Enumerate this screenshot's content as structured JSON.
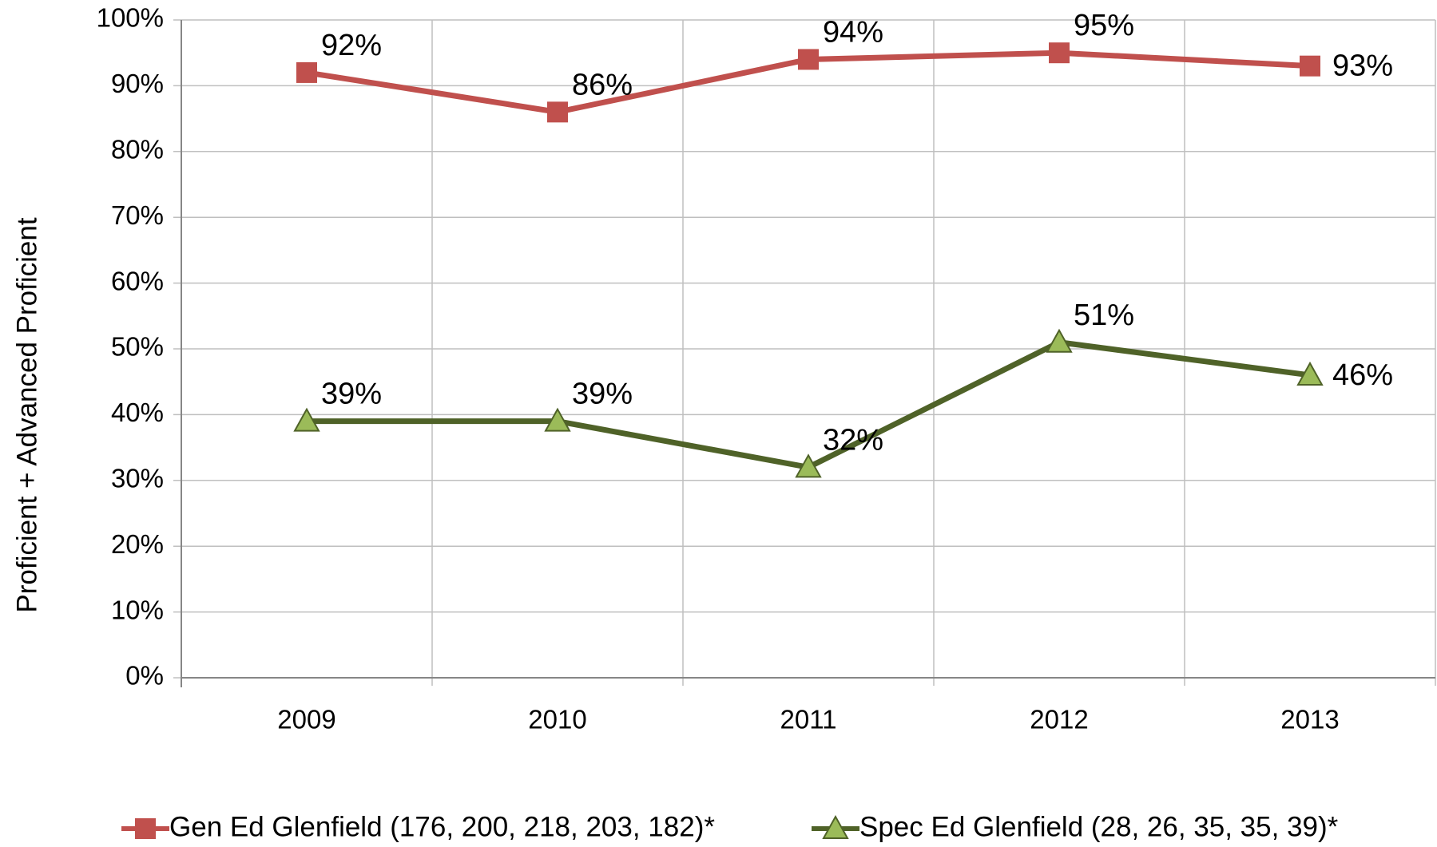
{
  "chart_data": {
    "type": "line",
    "y_label": "Proficient + Advanced Proficient",
    "categories": [
      "2009",
      "2010",
      "2011",
      "2012",
      "2013"
    ],
    "series": [
      {
        "name": "Gen Ed Glenfield (176, 200, 218, 203, 182)*",
        "color": "#c0504d",
        "marker": "square",
        "values": [
          92,
          86,
          94,
          95,
          93
        ],
        "value_labels": [
          "92%",
          "86%",
          "94%",
          "95%",
          "93%"
        ]
      },
      {
        "name": "Spec Ed Glenfield (28, 26, 35, 35, 39)*",
        "color": "#4f6228",
        "marker_color": "#9bbb59",
        "marker": "triangle",
        "values": [
          39,
          39,
          32,
          51,
          46
        ],
        "value_labels": [
          "39%",
          "39%",
          "32%",
          "51%",
          "46%"
        ]
      }
    ],
    "ylim": [
      0,
      100
    ],
    "yticks": [
      {
        "value": 0,
        "label": "0%"
      },
      {
        "value": 10,
        "label": "10%"
      },
      {
        "value": 20,
        "label": "20%"
      },
      {
        "value": 30,
        "label": "30%"
      },
      {
        "value": 40,
        "label": "40%"
      },
      {
        "value": 50,
        "label": "50%"
      },
      {
        "value": 60,
        "label": "60%"
      },
      {
        "value": 70,
        "label": "70%"
      },
      {
        "value": 80,
        "label": "80%"
      },
      {
        "value": 90,
        "label": "90%"
      },
      {
        "value": 100,
        "label": "100%"
      }
    ],
    "grid": true,
    "legend": "bottom"
  }
}
